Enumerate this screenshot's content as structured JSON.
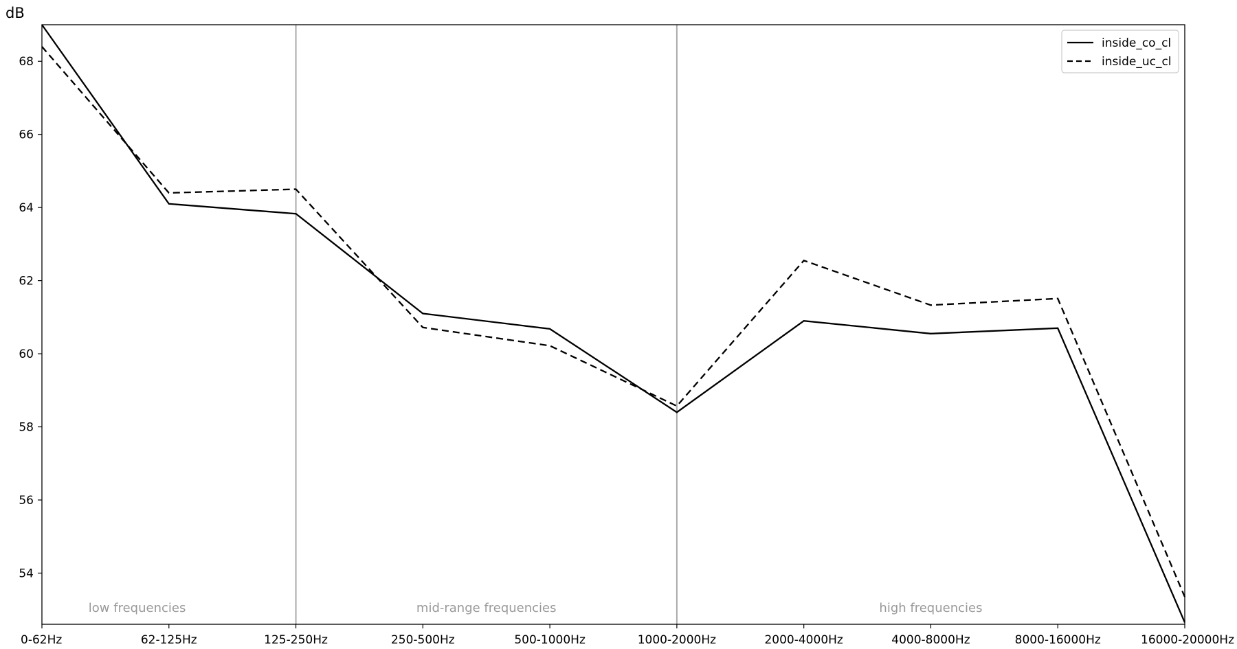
{
  "chart_data": {
    "type": "line",
    "title": "",
    "xlabel": "",
    "ylabel": "dB",
    "categories": [
      "0-62Hz",
      "62-125Hz",
      "125-250Hz",
      "250-500Hz",
      "500-1000Hz",
      "1000-2000Hz",
      "2000-4000Hz",
      "4000-8000Hz",
      "8000-16000Hz",
      "16000-20000Hz"
    ],
    "ylim": [
      52.6,
      69.0
    ],
    "yticks": [
      54,
      56,
      58,
      60,
      62,
      64,
      66,
      68
    ],
    "grid": false,
    "legend_position": "top-right",
    "series": [
      {
        "name": "inside_co_cl",
        "line_style": "solid",
        "color": "#000000",
        "values": [
          69.0,
          64.1,
          63.83,
          61.1,
          60.68,
          58.4,
          60.9,
          60.55,
          60.7,
          52.65
        ]
      },
      {
        "name": "inside_uc_cl",
        "line_style": "dashed",
        "color": "#000000",
        "values": [
          68.4,
          64.4,
          64.5,
          60.72,
          60.22,
          58.57,
          62.55,
          61.33,
          61.51,
          53.35
        ]
      }
    ],
    "region_dividers": [
      2,
      5
    ],
    "divider_color": "#aaaaaa",
    "regions": [
      {
        "label": "low frequencies",
        "center_index": 0.75
      },
      {
        "label": "mid-range frequencies",
        "center_index": 3.5
      },
      {
        "label": "high frequencies",
        "center_index": 7.0
      }
    ]
  }
}
